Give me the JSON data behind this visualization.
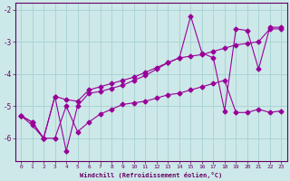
{
  "xlabel": "Windchill (Refroidissement éolien,°C)",
  "bg_color": "#cde8e8",
  "line_color": "#990099",
  "grid_color": "#aad4d4",
  "axis_color": "#660066",
  "tick_label_color": "#660066",
  "xlim": [
    -0.5,
    23.5
  ],
  "ylim": [
    -6.7,
    -1.8
  ],
  "yticks": [
    -6,
    -5,
    -4,
    -3,
    -2
  ],
  "xticks": [
    0,
    1,
    2,
    3,
    4,
    5,
    6,
    7,
    8,
    9,
    10,
    11,
    12,
    13,
    14,
    15,
    16,
    17,
    18,
    19,
    20,
    21,
    22,
    23
  ],
  "line1_x": [
    0,
    1,
    2,
    3,
    4,
    5,
    6,
    7,
    8,
    9,
    10,
    11,
    12,
    13,
    14,
    15,
    16,
    17,
    18,
    19,
    20,
    21,
    22,
    23
  ],
  "line1_y": [
    -5.3,
    -5.6,
    -6.0,
    -4.7,
    -6.4,
    -5.0,
    -4.6,
    -4.55,
    -4.45,
    -4.35,
    -4.2,
    -4.05,
    -3.85,
    -3.65,
    -3.5,
    -2.2,
    -3.35,
    -3.5,
    -5.15,
    -2.6,
    -2.65,
    -3.85,
    -2.55,
    -2.55
  ],
  "line2_x": [
    0,
    1,
    2,
    3,
    4,
    5,
    6,
    7,
    8,
    9,
    10,
    11,
    12,
    13,
    14,
    15,
    16,
    17,
    18,
    19,
    20,
    21,
    22,
    23
  ],
  "line2_y": [
    -5.3,
    -5.5,
    -6.0,
    -6.0,
    -5.0,
    -5.8,
    -5.5,
    -5.25,
    -5.1,
    -4.95,
    -4.9,
    -4.85,
    -4.75,
    -4.65,
    -4.6,
    -4.5,
    -4.4,
    -4.3,
    -4.2,
    -5.2,
    -5.2,
    -5.1,
    -5.2,
    -5.15
  ],
  "line3_x": [
    0,
    1,
    2,
    3,
    4,
    5,
    6,
    7,
    8,
    9,
    10,
    11,
    12,
    13,
    14,
    15,
    16,
    17,
    18,
    19,
    20,
    21,
    22,
    23
  ],
  "line3_y": [
    -5.3,
    -5.5,
    -6.0,
    -4.7,
    -4.8,
    -4.85,
    -4.5,
    -4.4,
    -4.3,
    -4.2,
    -4.1,
    -3.95,
    -3.8,
    -3.65,
    -3.5,
    -3.45,
    -3.4,
    -3.3,
    -3.2,
    -3.1,
    -3.05,
    -3.0,
    -2.6,
    -2.6
  ]
}
